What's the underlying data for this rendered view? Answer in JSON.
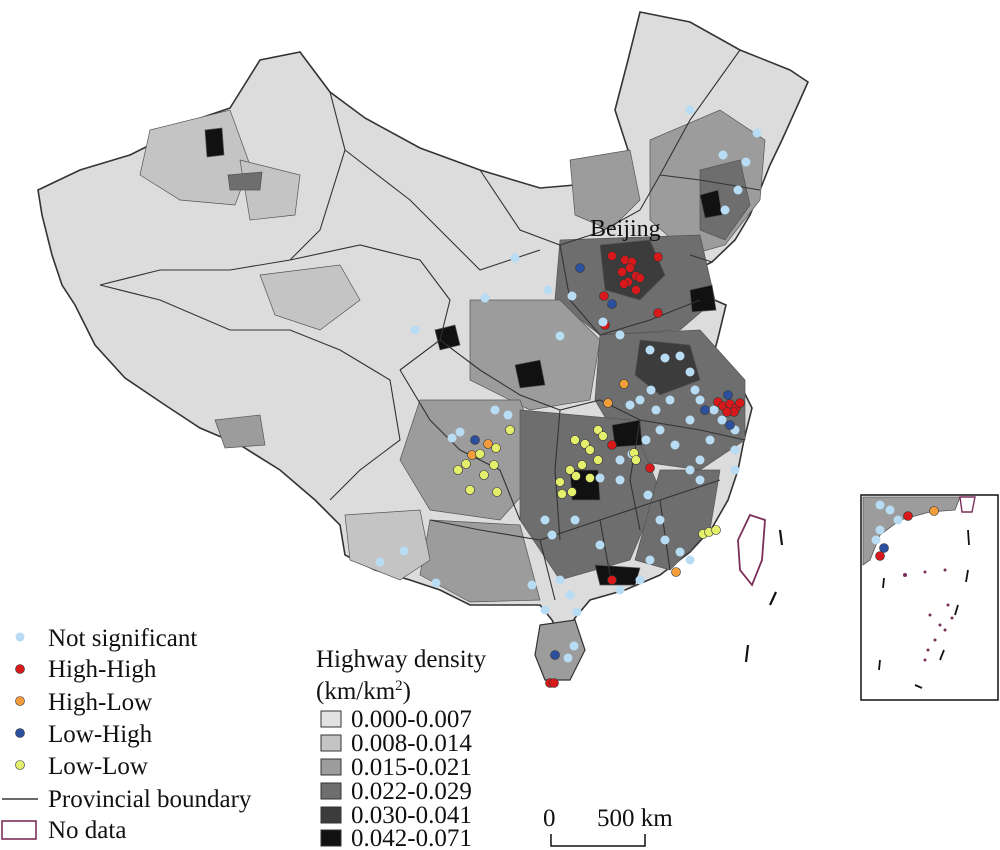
{
  "map": {
    "city_label": "Beijing",
    "legend_clusters": {
      "items": [
        {
          "label": "Not significant",
          "color": "#b9dcf5"
        },
        {
          "label": "High-High",
          "color": "#d7191c"
        },
        {
          "label": "High-Low",
          "color": "#f39c3a"
        },
        {
          "label": "Low-High",
          "color": "#2c4fa0"
        },
        {
          "label": "Low-Low",
          "color": "#e4ef6b"
        }
      ],
      "boundary_label": "Provincial boundary",
      "nodata_label": "No data",
      "nodata_color": "#7a2f5a"
    },
    "legend_density": {
      "title_line1": "Highway density",
      "title_line2_prefix": "(km/km",
      "title_line2_sup": "2",
      "title_line2_suffix": ")",
      "classes": [
        {
          "label": "0.000-0.007",
          "color": "#e2e2e2"
        },
        {
          "label": "0.008-0.014",
          "color": "#c4c4c4"
        },
        {
          "label": "0.015-0.021",
          "color": "#9c9c9c"
        },
        {
          "label": "0.022-0.029",
          "color": "#6e6e6e"
        },
        {
          "label": "0.030-0.041",
          "color": "#3c3c3c"
        },
        {
          "label": "0.042-0.071",
          "color": "#111111"
        }
      ]
    },
    "scale_bar": {
      "start": "0",
      "end": "500 km"
    }
  }
}
